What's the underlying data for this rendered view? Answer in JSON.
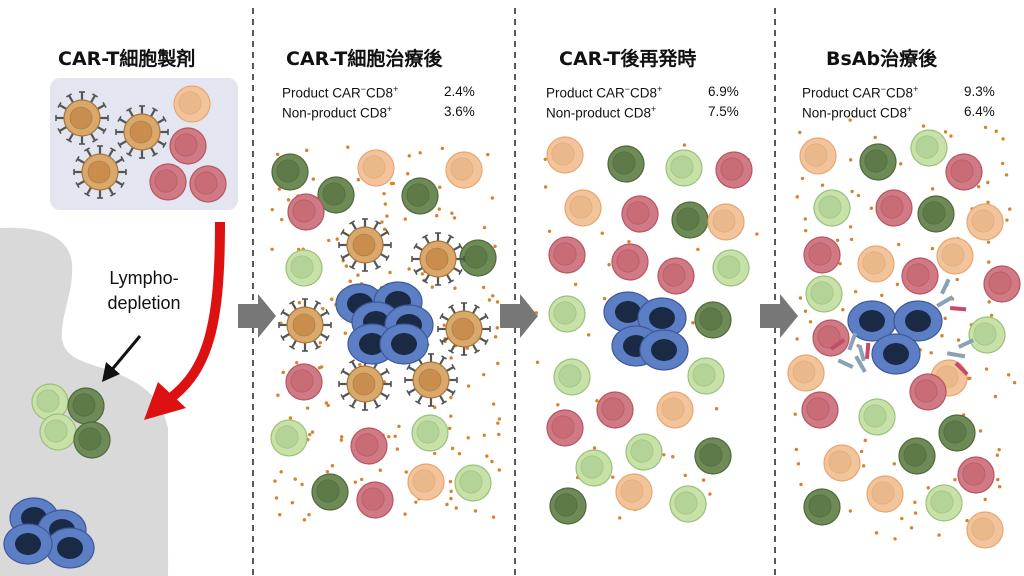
{
  "panels": [
    {
      "title": "CAR-T細胞製剤"
    },
    {
      "title": "CAR-T細胞治療後",
      "stats": [
        {
          "prefix": "Product CAR",
          "sup": "−",
          "mid": "CD8",
          "sup2": "+",
          "value": "2.4%"
        },
        {
          "prefix": "Non-product CD8",
          "sup": "+",
          "mid": "",
          "sup2": "",
          "value": "3.6%"
        }
      ]
    },
    {
      "title": "CAR-T後再発時",
      "stats": [
        {
          "prefix": "Product CAR",
          "sup": "−",
          "mid": "CD8",
          "sup2": "+",
          "value": "6.9%"
        },
        {
          "prefix": "Non-product CD8",
          "sup": "+",
          "mid": "",
          "sup2": "",
          "value": "7.5%"
        }
      ]
    },
    {
      "title": "BsAb治療後",
      "stats": [
        {
          "prefix": "Product CAR",
          "sup": "−",
          "mid": "CD8",
          "sup2": "+",
          "value": "9.3%"
        },
        {
          "prefix": "Non-product CD8",
          "sup": "+",
          "mid": "",
          "sup2": "",
          "value": "6.4%"
        }
      ]
    }
  ],
  "lymphodepletion_label_line1": "Lympho-",
  "lymphodepletion_label_line2": "depletion",
  "colors": {
    "tumor": "#5b7ec4",
    "tumor_nucleus": "#1b2a44",
    "car_t": "#d9a86a",
    "orange_cell": "#f2c49c",
    "red_cell": "#cf7a84",
    "light_green_cell": "#c7e1a8",
    "dark_green_cell": "#6e8a56",
    "cytokine_dot": "#d9822b",
    "arrow_red": "#dd1111",
    "arrow_gray": "#777777",
    "body_silhouette": "#d9d9d9",
    "product_box": "#e3e6f1"
  }
}
